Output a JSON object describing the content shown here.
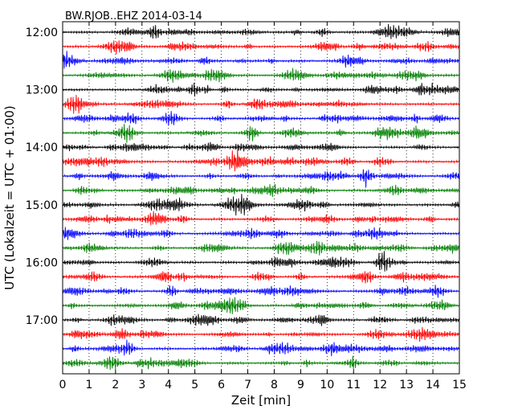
{
  "chart_data": {
    "type": "line",
    "title": "BW.RJOB..EHZ 2014-03-14",
    "xlabel": "Zeit  [min]",
    "ylabel": "UTC (Lokalzeit = UTC + 01:00)",
    "xlim": [
      0,
      15
    ],
    "x_ticks": [
      "0",
      "1",
      "2",
      "3",
      "4",
      "5",
      "6",
      "7",
      "8",
      "9",
      "10",
      "11",
      "12",
      "13",
      "14",
      "15"
    ],
    "y_ticks": [
      "12:00",
      "13:00",
      "14:00",
      "15:00",
      "16:00",
      "17:00"
    ],
    "grid": "vertical dotted",
    "trace_colors": [
      "#000000",
      "#ff0000",
      "#0000ff",
      "#008000"
    ],
    "series": [
      {
        "start": "12:00",
        "row": 0
      },
      {
        "start": "12:15",
        "row": 1
      },
      {
        "start": "12:30",
        "row": 2
      },
      {
        "start": "12:45",
        "row": 3
      },
      {
        "start": "13:00",
        "row": 4
      },
      {
        "start": "13:15",
        "row": 5
      },
      {
        "start": "13:30",
        "row": 6
      },
      {
        "start": "13:45",
        "row": 7
      },
      {
        "start": "14:00",
        "row": 8
      },
      {
        "start": "14:15",
        "row": 9
      },
      {
        "start": "14:30",
        "row": 10
      },
      {
        "start": "14:45",
        "row": 11
      },
      {
        "start": "15:00",
        "row": 12
      },
      {
        "start": "15:15",
        "row": 13
      },
      {
        "start": "15:30",
        "row": 14
      },
      {
        "start": "15:45",
        "row": 15
      },
      {
        "start": "16:00",
        "row": 16
      },
      {
        "start": "16:15",
        "row": 17
      },
      {
        "start": "16:30",
        "row": 18
      },
      {
        "start": "16:45",
        "row": 19
      },
      {
        "start": "17:00",
        "row": 20
      },
      {
        "start": "17:15",
        "row": 21
      },
      {
        "start": "17:30",
        "row": 22
      },
      {
        "start": "17:45",
        "row": 23
      }
    ]
  }
}
